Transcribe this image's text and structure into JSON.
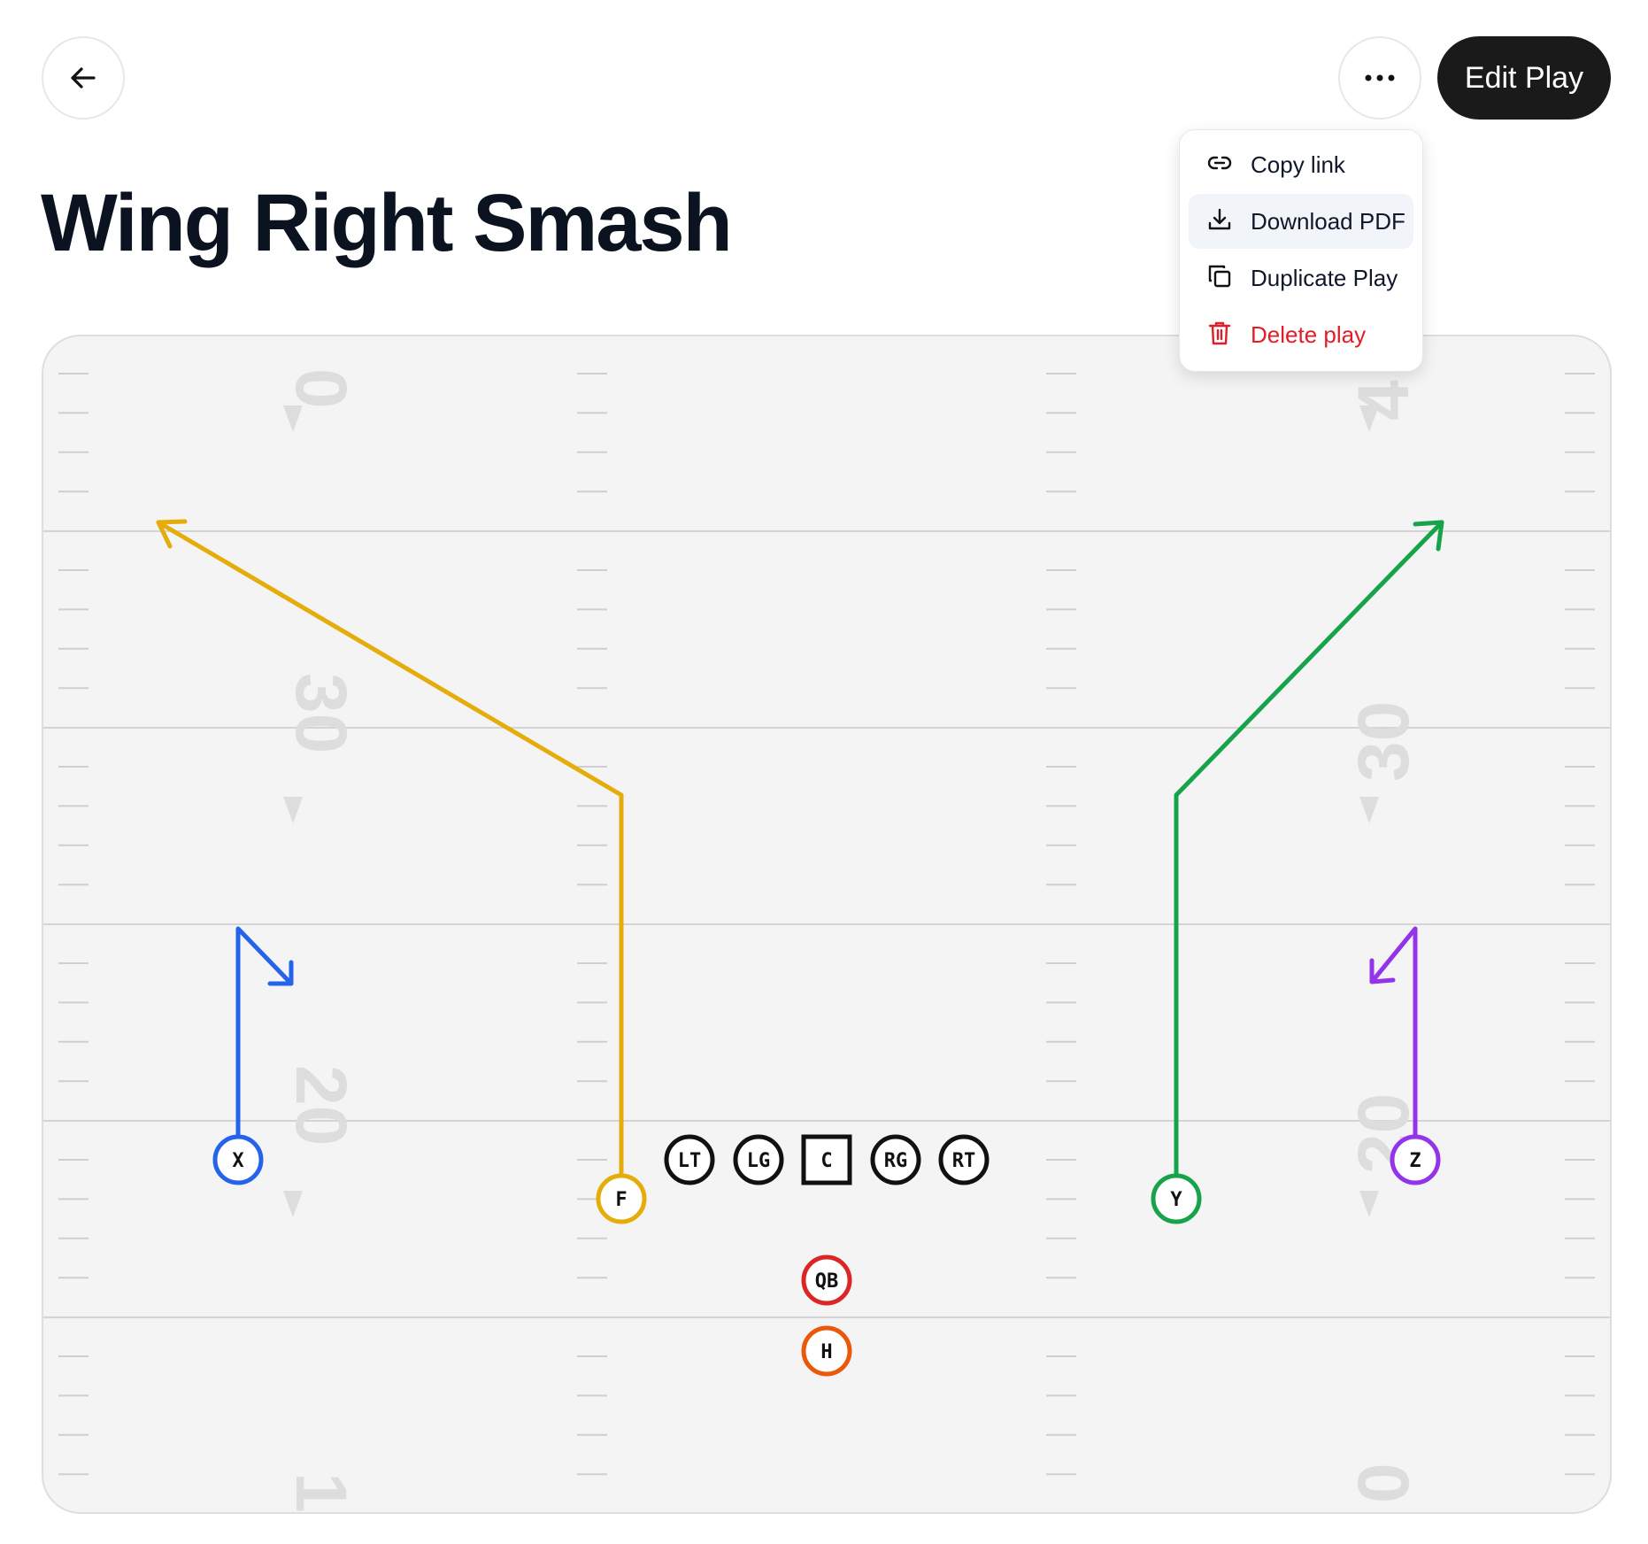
{
  "header": {
    "back_icon": "arrow-left-icon",
    "more_icon": "ellipsis-icon",
    "edit_label": "Edit Play"
  },
  "play": {
    "title": "Wing Right Smash"
  },
  "menu": {
    "items": [
      {
        "label": "Copy link",
        "icon": "link-icon"
      },
      {
        "label": "Download PDF",
        "icon": "download-icon",
        "highlighted": true
      },
      {
        "label": "Duplicate Play",
        "icon": "copy-icon"
      },
      {
        "label": "Delete play",
        "icon": "trash-icon",
        "color": "#e11d27"
      }
    ]
  },
  "field": {
    "yard_numbers": {
      "left": [
        "0",
        "30",
        "20",
        "1"
      ],
      "right": [
        "4",
        "30",
        "20",
        "0"
      ]
    },
    "players": {
      "X": {
        "label": "X",
        "color": "#2563eb"
      },
      "F": {
        "label": "F",
        "color": "#e5ad0b"
      },
      "LT": {
        "label": "LT",
        "color": "#111111"
      },
      "LG": {
        "label": "LG",
        "color": "#111111"
      },
      "C": {
        "label": "C",
        "color": "#111111"
      },
      "RG": {
        "label": "RG",
        "color": "#111111"
      },
      "RT": {
        "label": "RT",
        "color": "#111111"
      },
      "Y": {
        "label": "Y",
        "color": "#16a34a"
      },
      "Z": {
        "label": "Z",
        "color": "#9333ea"
      },
      "QB": {
        "label": "QB",
        "color": "#dc2626"
      },
      "H": {
        "label": "H",
        "color": "#ea580c"
      }
    }
  }
}
